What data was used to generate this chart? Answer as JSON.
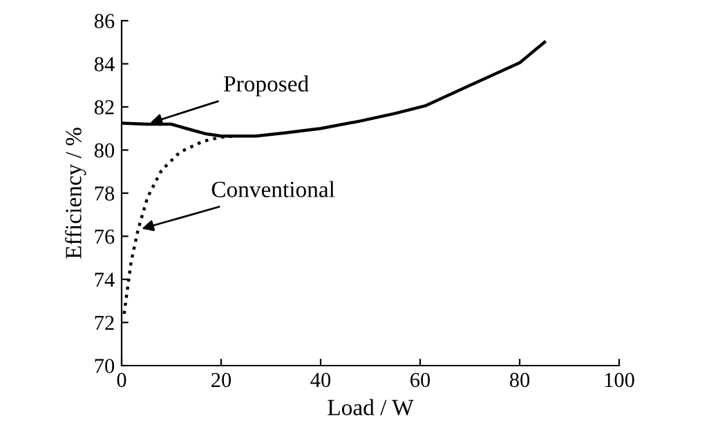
{
  "chart_data": {
    "type": "line",
    "xlabel": "Load / W",
    "ylabel": "Efficiency / %",
    "xlim": [
      0,
      100
    ],
    "xticks": [
      0,
      20,
      40,
      60,
      80,
      100
    ],
    "ylim": [
      70,
      86
    ],
    "yticks": [
      70,
      72,
      74,
      76,
      78,
      80,
      82,
      84,
      86
    ],
    "grid": false,
    "legend": false,
    "marker": "none",
    "series": [
      {
        "name": "Proposed",
        "color": "#000000",
        "line_style": "solid",
        "x": [
          0,
          5,
          10,
          13,
          17,
          20,
          27,
          33,
          40,
          48,
          55,
          61,
          70,
          80,
          85
        ],
        "values": [
          81.25,
          81.2,
          81.2,
          81.0,
          80.75,
          80.65,
          80.65,
          80.8,
          81.0,
          81.35,
          81.7,
          82.05,
          83.0,
          84.05,
          85.0
        ]
      },
      {
        "name": "Conventional",
        "color": "#000000",
        "line_style": "dotted",
        "x": [
          0.5,
          1.9,
          3.3,
          5.2,
          8,
          11.7,
          16.3,
          20,
          23
        ],
        "values": [
          72.4,
          74.8,
          76.3,
          77.8,
          79.05,
          79.9,
          80.4,
          80.6,
          80.65
        ]
      }
    ]
  }
}
